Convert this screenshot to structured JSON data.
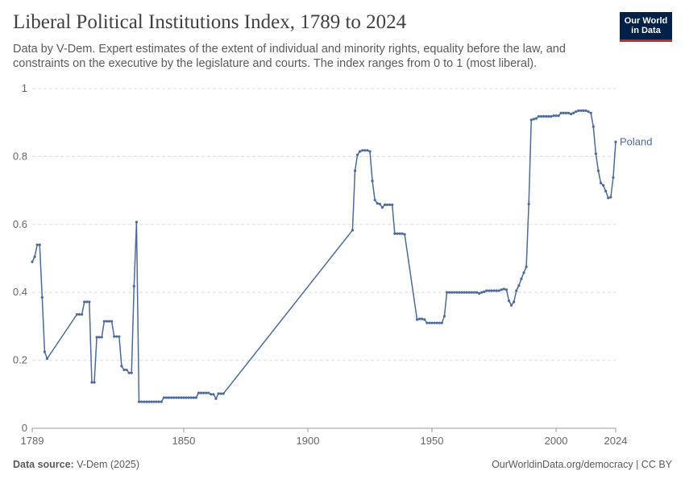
{
  "header": {
    "title": "Liberal Political Institutions Index, 1789 to 2024",
    "subtitle": "Data by V-Dem. Expert estimates of the extent of individual and minority rights, equality before the law, and constraints on the executive by the legislature and courts. The index ranges from 0 to 1 (most liberal).",
    "logo_line1": "Our World",
    "logo_line2": "in Data"
  },
  "footer": {
    "source_label": "Data source:",
    "source_value": "V-Dem (2025)",
    "url": "OurWorldinData.org/democracy | CC BY"
  },
  "colors": {
    "series": "#4c6a9c",
    "grid": "#dddddd",
    "logo_bg": "#002147",
    "logo_accent": "#ce261e"
  },
  "chart_data": {
    "type": "line",
    "title": "Liberal Political Institutions Index, 1789 to 2024",
    "xlabel": "",
    "ylabel": "",
    "xlim": [
      1789,
      2024
    ],
    "ylim": [
      0,
      1
    ],
    "x_ticks": [
      1789,
      1850,
      1900,
      1950,
      2000,
      2024
    ],
    "y_ticks": [
      0,
      0.2,
      0.4,
      0.6,
      0.8,
      1
    ],
    "y_tick_labels": [
      "0",
      "0.2",
      "0.4",
      "0.6",
      "0.8",
      "1"
    ],
    "grid": "horizontal dashed",
    "legend": "inline label at line end",
    "series": [
      {
        "name": "Poland",
        "color": "#4c6a9c",
        "points": [
          [
            1789,
            0.49
          ],
          [
            1790,
            0.505
          ],
          [
            1791,
            0.54
          ],
          [
            1792,
            0.54
          ],
          [
            1793,
            0.385
          ],
          [
            1794,
            0.225
          ],
          [
            1795,
            0.205
          ],
          [
            1807,
            0.335
          ],
          [
            1808,
            0.335
          ],
          [
            1809,
            0.335
          ],
          [
            1810,
            0.372
          ],
          [
            1811,
            0.372
          ],
          [
            1812,
            0.372
          ],
          [
            1813,
            0.135
          ],
          [
            1814,
            0.135
          ],
          [
            1815,
            0.268
          ],
          [
            1816,
            0.268
          ],
          [
            1817,
            0.268
          ],
          [
            1818,
            0.315
          ],
          [
            1819,
            0.315
          ],
          [
            1820,
            0.315
          ],
          [
            1821,
            0.315
          ],
          [
            1822,
            0.27
          ],
          [
            1823,
            0.27
          ],
          [
            1824,
            0.27
          ],
          [
            1825,
            0.183
          ],
          [
            1826,
            0.172
          ],
          [
            1827,
            0.172
          ],
          [
            1828,
            0.163
          ],
          [
            1829,
            0.163
          ],
          [
            1830,
            0.418
          ],
          [
            1831,
            0.607
          ],
          [
            1832,
            0.078
          ],
          [
            1833,
            0.078
          ],
          [
            1834,
            0.078
          ],
          [
            1835,
            0.078
          ],
          [
            1836,
            0.078
          ],
          [
            1837,
            0.078
          ],
          [
            1838,
            0.078
          ],
          [
            1839,
            0.078
          ],
          [
            1840,
            0.078
          ],
          [
            1841,
            0.078
          ],
          [
            1842,
            0.09
          ],
          [
            1843,
            0.09
          ],
          [
            1844,
            0.09
          ],
          [
            1845,
            0.09
          ],
          [
            1846,
            0.09
          ],
          [
            1847,
            0.09
          ],
          [
            1848,
            0.09
          ],
          [
            1849,
            0.09
          ],
          [
            1850,
            0.09
          ],
          [
            1851,
            0.09
          ],
          [
            1852,
            0.09
          ],
          [
            1853,
            0.09
          ],
          [
            1854,
            0.09
          ],
          [
            1855,
            0.09
          ],
          [
            1856,
            0.104
          ],
          [
            1857,
            0.104
          ],
          [
            1858,
            0.104
          ],
          [
            1859,
            0.104
          ],
          [
            1860,
            0.104
          ],
          [
            1861,
            0.1
          ],
          [
            1862,
            0.1
          ],
          [
            1863,
            0.087
          ],
          [
            1864,
            0.102
          ],
          [
            1865,
            0.102
          ],
          [
            1866,
            0.102
          ],
          [
            1918,
            0.583
          ],
          [
            1919,
            0.758
          ],
          [
            1920,
            0.805
          ],
          [
            1921,
            0.815
          ],
          [
            1922,
            0.818
          ],
          [
            1923,
            0.818
          ],
          [
            1924,
            0.818
          ],
          [
            1925,
            0.815
          ],
          [
            1926,
            0.728
          ],
          [
            1927,
            0.672
          ],
          [
            1928,
            0.662
          ],
          [
            1929,
            0.66
          ],
          [
            1930,
            0.65
          ],
          [
            1931,
            0.658
          ],
          [
            1932,
            0.658
          ],
          [
            1933,
            0.658
          ],
          [
            1934,
            0.658
          ],
          [
            1935,
            0.573
          ],
          [
            1936,
            0.573
          ],
          [
            1937,
            0.573
          ],
          [
            1938,
            0.573
          ],
          [
            1939,
            0.571
          ],
          [
            1944,
            0.32
          ],
          [
            1945,
            0.322
          ],
          [
            1946,
            0.322
          ],
          [
            1947,
            0.32
          ],
          [
            1948,
            0.31
          ],
          [
            1949,
            0.31
          ],
          [
            1950,
            0.31
          ],
          [
            1951,
            0.31
          ],
          [
            1952,
            0.31
          ],
          [
            1953,
            0.31
          ],
          [
            1954,
            0.31
          ],
          [
            1955,
            0.33
          ],
          [
            1956,
            0.4
          ],
          [
            1957,
            0.4
          ],
          [
            1958,
            0.4
          ],
          [
            1959,
            0.4
          ],
          [
            1960,
            0.4
          ],
          [
            1961,
            0.4
          ],
          [
            1962,
            0.4
          ],
          [
            1963,
            0.4
          ],
          [
            1964,
            0.4
          ],
          [
            1965,
            0.4
          ],
          [
            1966,
            0.4
          ],
          [
            1967,
            0.4
          ],
          [
            1968,
            0.4
          ],
          [
            1969,
            0.397
          ],
          [
            1970,
            0.4
          ],
          [
            1971,
            0.402
          ],
          [
            1972,
            0.405
          ],
          [
            1973,
            0.405
          ],
          [
            1974,
            0.405
          ],
          [
            1975,
            0.405
          ],
          [
            1976,
            0.405
          ],
          [
            1977,
            0.405
          ],
          [
            1978,
            0.408
          ],
          [
            1979,
            0.41
          ],
          [
            1980,
            0.408
          ],
          [
            1981,
            0.375
          ],
          [
            1982,
            0.362
          ],
          [
            1983,
            0.372
          ],
          [
            1984,
            0.405
          ],
          [
            1985,
            0.42
          ],
          [
            1986,
            0.44
          ],
          [
            1987,
            0.458
          ],
          [
            1988,
            0.475
          ],
          [
            1989,
            0.66
          ],
          [
            1990,
            0.908
          ],
          [
            1991,
            0.91
          ],
          [
            1992,
            0.912
          ],
          [
            1993,
            0.918
          ],
          [
            1994,
            0.918
          ],
          [
            1995,
            0.918
          ],
          [
            1996,
            0.918
          ],
          [
            1997,
            0.918
          ],
          [
            1998,
            0.918
          ],
          [
            1999,
            0.92
          ],
          [
            2000,
            0.92
          ],
          [
            2001,
            0.92
          ],
          [
            2002,
            0.928
          ],
          [
            2003,
            0.928
          ],
          [
            2004,
            0.928
          ],
          [
            2005,
            0.928
          ],
          [
            2006,
            0.925
          ],
          [
            2007,
            0.928
          ],
          [
            2008,
            0.932
          ],
          [
            2009,
            0.935
          ],
          [
            2010,
            0.935
          ],
          [
            2011,
            0.935
          ],
          [
            2012,
            0.935
          ],
          [
            2013,
            0.932
          ],
          [
            2014,
            0.928
          ],
          [
            2015,
            0.888
          ],
          [
            2016,
            0.808
          ],
          [
            2017,
            0.758
          ],
          [
            2018,
            0.722
          ],
          [
            2019,
            0.715
          ],
          [
            2020,
            0.698
          ],
          [
            2021,
            0.678
          ],
          [
            2022,
            0.68
          ],
          [
            2023,
            0.738
          ],
          [
            2024,
            0.843
          ]
        ]
      }
    ]
  }
}
